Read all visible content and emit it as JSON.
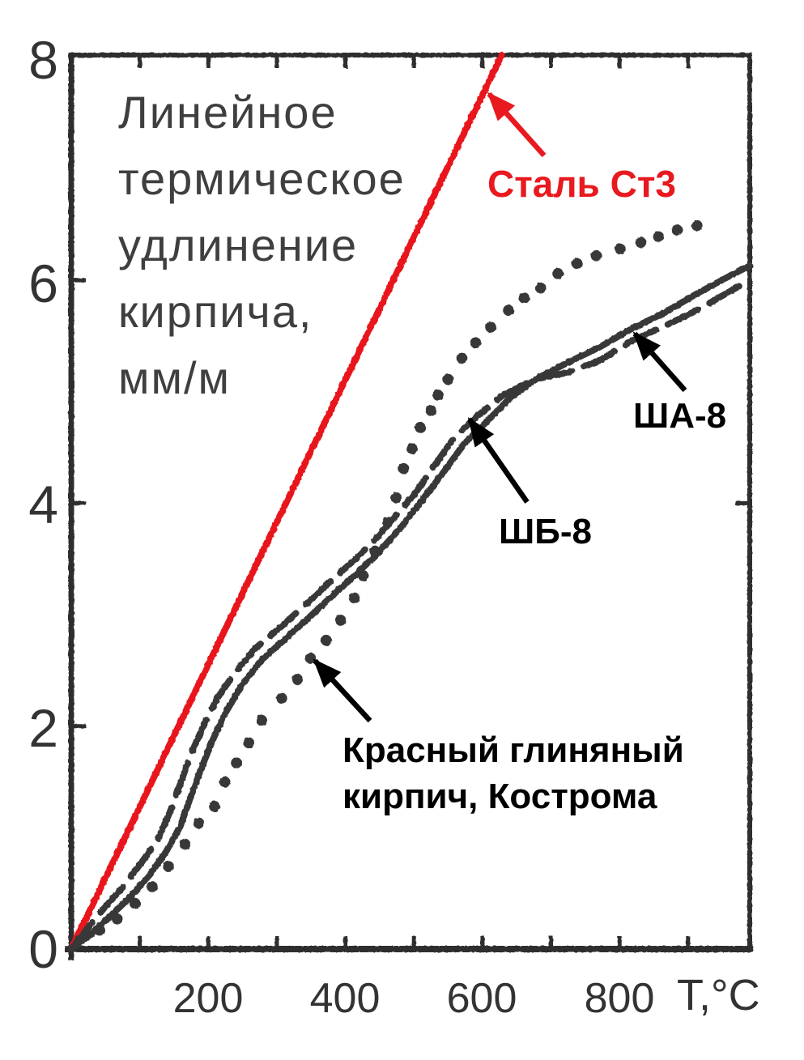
{
  "figure": {
    "title_lines": [
      "Линейное",
      "термическое",
      "удлинение",
      "кирпича,",
      "мм/м"
    ],
    "x_axis": {
      "label": "T,°C",
      "tick_labels": [
        "200",
        "400",
        "600",
        "800"
      ],
      "tick_values": [
        200,
        400,
        600,
        800
      ],
      "minor_tick_step": 100,
      "range": [
        0,
        990
      ]
    },
    "y_axis": {
      "tick_labels": [
        "0",
        "2",
        "4",
        "6",
        "8"
      ],
      "tick_values": [
        0,
        2,
        4,
        6,
        8
      ],
      "left_tick_values": [
        2,
        4,
        6
      ],
      "right_tick_values": [
        4
      ],
      "range": [
        0,
        8.02
      ]
    }
  },
  "colors": {
    "ink": "#383838",
    "frame": "#2d2d2d",
    "red": "#e8191f",
    "black": "#000000",
    "background": "#ffffff"
  },
  "chart_data": {
    "type": "line",
    "title": "Линейное термическое удлинение кирпича, мм/м",
    "xlabel": "T,°C",
    "ylabel": "Линейное термическое удлинение кирпича, мм/м",
    "xlim": [
      0,
      990
    ],
    "ylim": [
      0,
      8.02
    ],
    "grid": false,
    "legend_position": "inline-annotations",
    "series": [
      {
        "name": "Сталь Ст3",
        "style": "steel",
        "line": "solid",
        "color": "#e8191f",
        "points": [
          [
            0,
            0
          ],
          [
            628,
            8.02
          ]
        ]
      },
      {
        "name": "ША-8",
        "style": "solid",
        "line": "solid",
        "color": "#383838",
        "points": [
          [
            0,
            0
          ],
          [
            26,
            0.12
          ],
          [
            56,
            0.29
          ],
          [
            85,
            0.46
          ],
          [
            115,
            0.67
          ],
          [
            138,
            0.87
          ],
          [
            159,
            1.1
          ],
          [
            174,
            1.36
          ],
          [
            189,
            1.61
          ],
          [
            206,
            1.87
          ],
          [
            225,
            2.12
          ],
          [
            249,
            2.37
          ],
          [
            277,
            2.59
          ],
          [
            310,
            2.77
          ],
          [
            346,
            2.97
          ],
          [
            381,
            3.17
          ],
          [
            417,
            3.37
          ],
          [
            450,
            3.57
          ],
          [
            482,
            3.79
          ],
          [
            511,
            4.02
          ],
          [
            541,
            4.26
          ],
          [
            573,
            4.53
          ],
          [
            606,
            4.73
          ],
          [
            641,
            4.95
          ],
          [
            680,
            5.12
          ],
          [
            724,
            5.26
          ],
          [
            771,
            5.4
          ],
          [
            819,
            5.57
          ],
          [
            866,
            5.71
          ],
          [
            913,
            5.88
          ],
          [
            961,
            6.04
          ],
          [
            990,
            6.13
          ]
        ]
      },
      {
        "name": "ШБ-8",
        "style": "dashed",
        "line": "dashed",
        "color": "#383838",
        "points": [
          [
            0,
            0
          ],
          [
            20,
            0.16
          ],
          [
            47,
            0.36
          ],
          [
            76,
            0.56
          ],
          [
            103,
            0.78
          ],
          [
            127,
            0.99
          ],
          [
            144,
            1.23
          ],
          [
            159,
            1.48
          ],
          [
            174,
            1.74
          ],
          [
            192,
            1.99
          ],
          [
            213,
            2.25
          ],
          [
            239,
            2.48
          ],
          [
            269,
            2.7
          ],
          [
            304,
            2.88
          ],
          [
            340,
            3.08
          ],
          [
            375,
            3.28
          ],
          [
            411,
            3.48
          ],
          [
            443,
            3.67
          ],
          [
            473,
            3.88
          ],
          [
            502,
            4.09
          ],
          [
            529,
            4.33
          ],
          [
            559,
            4.59
          ],
          [
            592,
            4.78
          ],
          [
            630,
            4.97
          ],
          [
            680,
            5.12
          ],
          [
            724,
            5.17
          ],
          [
            771,
            5.28
          ],
          [
            819,
            5.46
          ],
          [
            866,
            5.59
          ],
          [
            913,
            5.73
          ],
          [
            961,
            5.9
          ],
          [
            990,
            6.0
          ]
        ]
      },
      {
        "name": "Красный глиняный кирпич, Кострома",
        "style": "dotted",
        "line": "dotted",
        "color": "#383838",
        "points": [
          [
            41,
            0.17
          ],
          [
            67,
            0.27
          ],
          [
            93,
            0.41
          ],
          [
            118,
            0.56
          ],
          [
            142,
            0.74
          ],
          [
            166,
            0.94
          ],
          [
            186,
            1.13
          ],
          [
            209,
            1.28
          ],
          [
            224,
            1.5
          ],
          [
            241,
            1.67
          ],
          [
            259,
            1.85
          ],
          [
            278,
            2.05
          ],
          [
            307,
            2.25
          ],
          [
            330,
            2.42
          ],
          [
            349,
            2.61
          ],
          [
            372,
            2.77
          ],
          [
            393,
            2.95
          ],
          [
            413,
            3.15
          ],
          [
            426,
            3.35
          ],
          [
            443,
            3.57
          ],
          [
            462,
            3.83
          ],
          [
            474,
            4.05
          ],
          [
            485,
            4.31
          ],
          [
            497,
            4.49
          ],
          [
            509,
            4.68
          ],
          [
            525,
            4.83
          ],
          [
            535,
            4.97
          ],
          [
            550,
            5.11
          ],
          [
            570,
            5.3
          ],
          [
            590,
            5.44
          ],
          [
            612,
            5.58
          ],
          [
            638,
            5.73
          ],
          [
            661,
            5.84
          ],
          [
            685,
            5.93
          ],
          [
            710,
            6.06
          ],
          [
            738,
            6.15
          ],
          [
            766,
            6.22
          ],
          [
            801,
            6.28
          ],
          [
            831,
            6.34
          ],
          [
            857,
            6.39
          ],
          [
            884,
            6.45
          ],
          [
            913,
            6.49
          ]
        ]
      }
    ]
  },
  "annotations": [
    {
      "name": "steel-label",
      "text_lines": [
        "Сталь Ст3"
      ],
      "color": "#e8191f",
      "arrow": {
        "from": [
          672,
          192
        ],
        "to": [
          604,
          116
        ]
      }
    },
    {
      "name": "sha8-label",
      "text_lines": [
        "ША-8"
      ],
      "color": "#000000",
      "arrow": {
        "from": [
          846,
          482
        ],
        "to": [
          784,
          412
        ]
      }
    },
    {
      "name": "shb8-label",
      "text_lines": [
        "ШБ-8"
      ],
      "color": "#000000",
      "arrow": {
        "from": [
          651,
          620
        ],
        "to": [
          580,
          518
        ]
      }
    },
    {
      "name": "brick-label",
      "text_lines": [
        "Красный глиняный",
        "кирпич, Кострома"
      ],
      "color": "#000000",
      "arrow": {
        "from": [
          457,
          890
        ],
        "to": [
          389,
          816
        ]
      }
    }
  ]
}
